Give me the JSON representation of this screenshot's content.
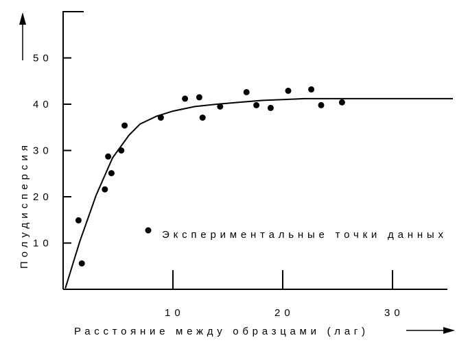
{
  "chart_data": {
    "type": "scatter",
    "xlabel": "Расстояние между образцами (лаг)",
    "ylabel": "Полудисперсия",
    "xlim": [
      0,
      35.5
    ],
    "ylim": [
      0,
      60
    ],
    "x_ticks": [
      10,
      20,
      30
    ],
    "x_tick_labels": [
      "10",
      "20",
      "30"
    ],
    "y_ticks": [
      10,
      20,
      30,
      40,
      50
    ],
    "y_tick_labels": [
      "10",
      "20",
      "30",
      "40",
      "50"
    ],
    "grid": false,
    "legend_position": "inside-right",
    "series": [
      {
        "name": "Экспериментальные точки данных",
        "type": "scatter",
        "points": [
          {
            "x": 1.4,
            "y": 14.9
          },
          {
            "x": 1.7,
            "y": 5.6
          },
          {
            "x": 3.8,
            "y": 21.6
          },
          {
            "x": 4.1,
            "y": 28.7
          },
          {
            "x": 4.4,
            "y": 25.1
          },
          {
            "x": 5.3,
            "y": 30.0
          },
          {
            "x": 5.6,
            "y": 35.4
          },
          {
            "x": 8.9,
            "y": 37.1
          },
          {
            "x": 11.1,
            "y": 41.2
          },
          {
            "x": 12.4,
            "y": 41.5
          },
          {
            "x": 12.7,
            "y": 37.1
          },
          {
            "x": 14.3,
            "y": 39.5
          },
          {
            "x": 16.7,
            "y": 42.6
          },
          {
            "x": 17.6,
            "y": 39.8
          },
          {
            "x": 18.9,
            "y": 39.2
          },
          {
            "x": 20.5,
            "y": 42.9
          },
          {
            "x": 22.6,
            "y": 43.2
          },
          {
            "x": 23.5,
            "y": 39.8
          },
          {
            "x": 25.4,
            "y": 40.4
          }
        ]
      },
      {
        "type": "line",
        "points": [
          {
            "x": 0.2,
            "y": 0.2
          },
          {
            "x": 1.5,
            "y": 10.2
          },
          {
            "x": 3.0,
            "y": 20.3
          },
          {
            "x": 4.5,
            "y": 28.4
          },
          {
            "x": 6.0,
            "y": 33.3
          },
          {
            "x": 7.0,
            "y": 35.7
          },
          {
            "x": 8.5,
            "y": 37.4
          },
          {
            "x": 10.0,
            "y": 38.5
          },
          {
            "x": 12.0,
            "y": 39.5
          },
          {
            "x": 14.0,
            "y": 40.0
          },
          {
            "x": 16.0,
            "y": 40.4
          },
          {
            "x": 18.0,
            "y": 40.8
          },
          {
            "x": 20.0,
            "y": 41.0
          },
          {
            "x": 22.0,
            "y": 41.2
          },
          {
            "x": 24.0,
            "y": 41.2
          },
          {
            "x": 35.5,
            "y": 41.2
          }
        ]
      }
    ]
  }
}
